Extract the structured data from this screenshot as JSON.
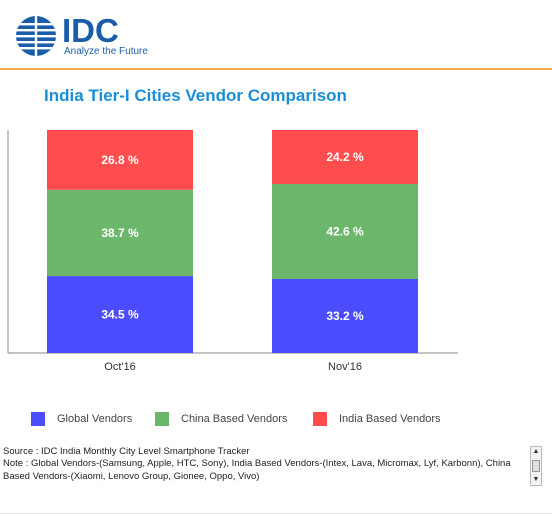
{
  "brand": {
    "name": "IDC",
    "tagline": "Analyze the Future"
  },
  "title": "India Tier-I Cities Vendor Comparison",
  "chart_data": {
    "type": "bar",
    "stacked": true,
    "percent_stacked": true,
    "categories": [
      "Oct'16",
      "Nov'16"
    ],
    "series": [
      {
        "name": "Global Vendors",
        "color": "#4c4cff",
        "values": [
          34.5,
          33.2
        ],
        "labels": [
          "34.5 %",
          "33.2 %"
        ]
      },
      {
        "name": "China Based Vendors",
        "color": "#6db76d",
        "values": [
          38.7,
          42.6
        ],
        "labels": [
          "38.7 %",
          "42.6 %"
        ]
      },
      {
        "name": "India Based Vendors",
        "color": "#ff4c4c",
        "values": [
          26.8,
          24.2
        ],
        "labels": [
          "26.8 %",
          "24.2 %"
        ]
      }
    ],
    "ylim": [
      0,
      100
    ],
    "grid": false,
    "legend_position": "bottom"
  },
  "notes": {
    "source": "Source : IDC India Monthly City Level Smartphone Tracker",
    "note": "Note : Global Vendors-(Samsung, Apple, HTC, Sony), India Based Vendors-(Intex, Lava, Micromax, Lyf, Karbonn), China Based Vendors-(Xiaomi, Lenovo Group, Gionee, Oppo, Vivo)"
  }
}
